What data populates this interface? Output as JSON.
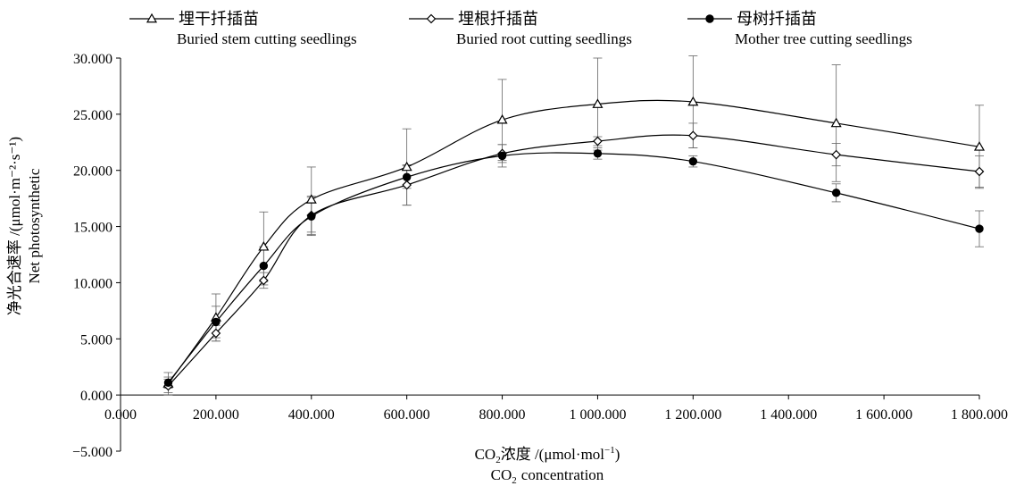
{
  "chart_data": {
    "type": "line",
    "title": "",
    "xlabel_cn": "浓度 /(",
    "xlabel_unit": "μmol·mol",
    "xlabel_en": "CO",
    "xlabel_en_suffix": "concentration",
    "xlabel_prefix": "CO",
    "xlabel_sub": "2",
    "xlabel_sup": "−1",
    "xlabel_close": ")",
    "ylabel_cn": "净光合速率 /(μmol·m⁻²·s⁻¹)",
    "ylabel_en": "Net photosynthetic",
    "x": [
      100,
      200,
      300,
      400,
      600,
      800,
      1000,
      1200,
      1500,
      1800
    ],
    "xlim": [
      0,
      1800
    ],
    "ylim": [
      -5,
      30
    ],
    "x_ticks": [
      0,
      200,
      400,
      600,
      800,
      1000,
      1200,
      1400,
      1600,
      1800
    ],
    "x_tick_labels": [
      "0.000",
      "200.000",
      "400.000",
      "600.000",
      "800.000",
      "1 000.000",
      "1 200.000",
      "1 400.000",
      "1 600.000",
      "1 800.000"
    ],
    "y_ticks": [
      -5,
      0,
      5,
      10,
      15,
      20,
      25,
      30
    ],
    "y_tick_labels": [
      "−5.000",
      "0.000",
      "5.000",
      "10.000",
      "15.000",
      "20.000",
      "25.000",
      "30.000"
    ],
    "grid": false,
    "legend_position": "top",
    "series": [
      {
        "name": "埋干扦插苗",
        "name_en": "Buried stem cutting seedlings",
        "marker": "triangle",
        "values": [
          1.0,
          6.9,
          13.2,
          17.4,
          20.3,
          24.5,
          25.9,
          26.1,
          24.2,
          22.1
        ],
        "err": [
          1.0,
          2.1,
          3.1,
          2.9,
          3.4,
          3.6,
          4.1,
          4.1,
          5.2,
          3.7
        ]
      },
      {
        "name": "埋根扦插苗",
        "name_en": "Buried root cutting seedlings",
        "marker": "diamond",
        "values": [
          0.8,
          5.5,
          10.2,
          16.0,
          18.7,
          21.5,
          22.6,
          23.1,
          21.4,
          19.9
        ],
        "err": [
          0.6,
          0.7,
          0.7,
          1.7,
          1.8,
          0.8,
          0.4,
          1.1,
          1.0,
          1.4
        ]
      },
      {
        "name": "母树扦插苗",
        "name_en": "Mother tree cutting seedlings",
        "marker": "circle",
        "values": [
          1.1,
          6.5,
          11.5,
          15.9,
          19.4,
          21.3,
          21.5,
          20.8,
          18.0,
          14.8
        ],
        "err": [
          0.5,
          1.4,
          1.7,
          1.7,
          1.0,
          1.0,
          0.5,
          0.5,
          0.8,
          1.6
        ]
      }
    ]
  }
}
